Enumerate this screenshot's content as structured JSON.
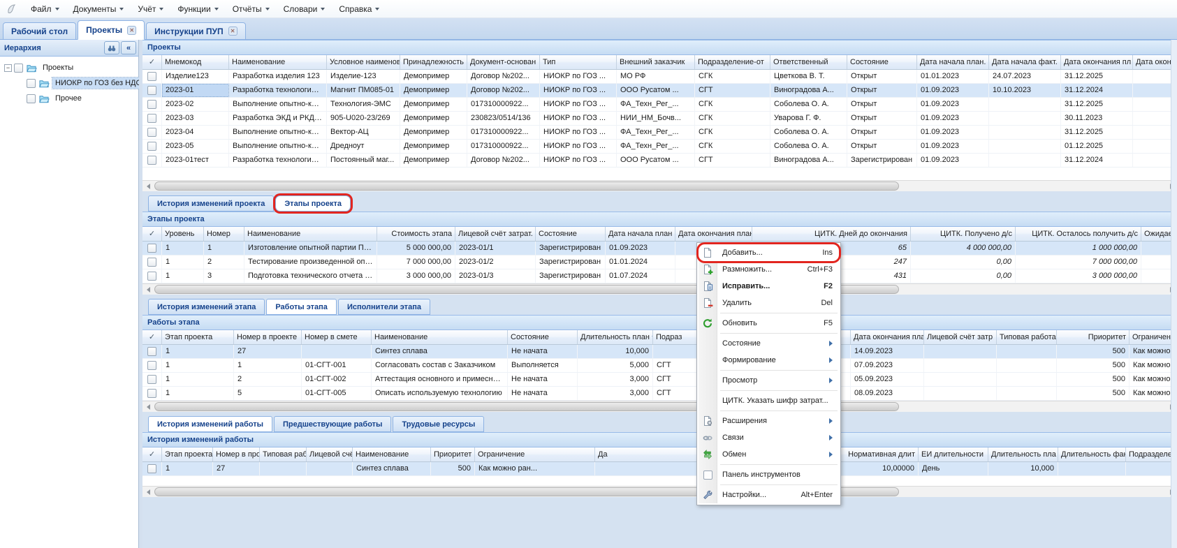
{
  "check_column_header": "✓",
  "menubar": {
    "items": [
      {
        "name": "file",
        "label": "Файл"
      },
      {
        "name": "documents",
        "label": "Документы"
      },
      {
        "name": "accounting",
        "label": "Учёт"
      },
      {
        "name": "functions",
        "label": "Функции"
      },
      {
        "name": "reports",
        "label": "Отчёты"
      },
      {
        "name": "dictionaries",
        "label": "Словари"
      },
      {
        "name": "help",
        "label": "Справка"
      }
    ]
  },
  "window_tabs": [
    {
      "name": "desktop",
      "label": "Рабочий стол",
      "closable": false,
      "active": false
    },
    {
      "name": "projects",
      "label": "Проекты",
      "closable": true,
      "active": true
    },
    {
      "name": "instructions",
      "label": "Инструкции ПУП",
      "closable": true,
      "active": false
    }
  ],
  "sidebar": {
    "title": "Иерархия",
    "nodes": [
      {
        "label": "Проекты",
        "level": 0,
        "expander": true,
        "selected": false
      },
      {
        "label": "НИОКР по ГОЗ без НДС",
        "level": 1,
        "expander": false,
        "selected": true
      },
      {
        "label": "Прочее",
        "level": 1,
        "expander": false,
        "selected": false
      }
    ]
  },
  "sections": [
    {
      "type": "grid",
      "id": "projects",
      "title": "Проекты",
      "selected_row": 1,
      "focus_cell": 0,
      "columns": [
        {
          "label": "Мнемокод"
        },
        {
          "label": "Наименование"
        },
        {
          "label": "Условное наименова"
        },
        {
          "label": "Принадлежность"
        },
        {
          "label": "Документ-основан"
        },
        {
          "label": "Тип"
        },
        {
          "label": "Внешний заказчик"
        },
        {
          "label": "Подразделение-от"
        },
        {
          "label": "Ответственный"
        },
        {
          "label": "Состояние"
        },
        {
          "label": "Дата начала план."
        },
        {
          "label": "Дата начала факт."
        },
        {
          "label": "Дата окончания пл"
        },
        {
          "label": "Дата окончания ф"
        }
      ],
      "rows": [
        [
          "Изделие123",
          "Разработка изделия 123",
          "Изделие-123",
          "Демопример",
          "Договор №202...",
          "НИОКР по ГОЗ ...",
          "МО РФ",
          "СГК",
          "Цветкова В. Т.",
          "Открыт",
          "01.01.2023",
          "24.07.2023",
          "31.12.2025",
          ""
        ],
        [
          "2023-01",
          "Разработка технологии и...",
          "Магнит ПМ085-01",
          "Демопример",
          "Договор №202...",
          "НИОКР по ГОЗ ...",
          "ООО Русатом ...",
          "СГТ",
          "Виноградова А...",
          "Открыт",
          "01.09.2023",
          "10.10.2023",
          "31.12.2024",
          ""
        ],
        [
          "2023-02",
          "Выполнение опытно-конс...",
          "Технология-ЭМС",
          "Демопример",
          "017310000922...",
          "НИОКР по ГОЗ ...",
          "ФА_Техн_Рег_...",
          "СГК",
          "Соболева О. А.",
          "Открыт",
          "01.09.2023",
          "",
          "31.12.2025",
          ""
        ],
        [
          "2023-03",
          "Разработка ЭКД и РКД н...",
          "905-U020-23/269",
          "Демопример",
          "230823/0514/136",
          "НИОКР по ГОЗ ...",
          "НИИ_НМ_Бочв...",
          "СГК",
          "Уварова Г. Ф.",
          "Открыт",
          "01.09.2023",
          "",
          "30.11.2023",
          ""
        ],
        [
          "2023-04",
          "Выполнение опытно-конс...",
          "Вектор-АЦ",
          "Демопример",
          "017310000922...",
          "НИОКР по ГОЗ ...",
          "ФА_Техн_Рег_...",
          "СГК",
          "Соболева О. А.",
          "Открыт",
          "01.09.2023",
          "",
          "31.12.2025",
          ""
        ],
        [
          "2023-05",
          "Выполнение опытно-конс...",
          "Дредноут",
          "Демопример",
          "017310000922...",
          "НИОКР по ГОЗ ...",
          "ФА_Техн_Рег_...",
          "СГК",
          "Соболева О. А.",
          "Открыт",
          "01.09.2023",
          "",
          "01.12.2025",
          ""
        ],
        [
          "2023-01тест",
          "Разработка технологии и...",
          "Постоянный маг...",
          "Демопример",
          "Договор №202...",
          "НИОКР по ГОЗ ...",
          "ООО Русатом ...",
          "СГТ",
          "Виноградова А...",
          "Зарегистрирован",
          "01.09.2023",
          "",
          "31.12.2024",
          ""
        ]
      ]
    },
    {
      "type": "tabs",
      "id": "project-detail",
      "tabs": [
        {
          "name": "project-history",
          "label": "История изменений проекта",
          "active": false
        },
        {
          "name": "project-stages",
          "label": "Этапы проекта",
          "active": true,
          "annotated": true
        }
      ]
    },
    {
      "type": "grid",
      "id": "stages",
      "title": "Этапы проекта",
      "selected_row": 0,
      "columns": [
        {
          "label": "Уровень"
        },
        {
          "label": "Номер"
        },
        {
          "label": "Наименование"
        },
        {
          "label": "Стоимость этапа",
          "align": "right"
        },
        {
          "label": "Лицевой счёт затрат."
        },
        {
          "label": "Состояние"
        },
        {
          "label": "Дата начала план"
        },
        {
          "label": "Дата окончания план"
        },
        {
          "label": "ЦИТК. Дней до окончания",
          "align": "right",
          "italic": true
        },
        {
          "label": "ЦИТК. Получено д/с",
          "align": "right",
          "italic": true
        },
        {
          "label": "ЦИТК. Осталось получить д/с",
          "align": "right",
          "italic": true
        },
        {
          "label": "Ожидаемые"
        }
      ],
      "rows": [
        [
          "1",
          "1",
          "Изготовление опытной партии ПМ0...",
          "5 000 000,00",
          "2023-01/1",
          "Зарегистрирован",
          "01.09.2023",
          "",
          "65",
          "4 000 000,00",
          "1 000 000,00",
          ""
        ],
        [
          "1",
          "2",
          "Тестирование произведенной опыт...",
          "7 000 000,00",
          "2023-01/2",
          "Зарегистрирован",
          "01.01.2024",
          "",
          "247",
          "0,00",
          "7 000 000,00",
          ""
        ],
        [
          "1",
          "3",
          "Подготовка технического отчета с ...",
          "3 000 000,00",
          "2023-01/3",
          "Зарегистрирован",
          "01.07.2024",
          "",
          "431",
          "0,00",
          "3 000 000,00",
          ""
        ]
      ]
    },
    {
      "type": "tabs",
      "id": "stage-detail",
      "tabs": [
        {
          "name": "stage-history",
          "label": "История изменений этапа",
          "active": false
        },
        {
          "name": "stage-works",
          "label": "Работы этапа",
          "active": true
        },
        {
          "name": "stage-executors",
          "label": "Исполнители этапа",
          "active": false
        }
      ]
    },
    {
      "type": "grid",
      "id": "works",
      "title": "Работы этапа",
      "selected_row": 0,
      "columns": [
        {
          "label": "Этап проекта"
        },
        {
          "label": "Номер в проекте"
        },
        {
          "label": "Номер в смете"
        },
        {
          "label": "Наименование"
        },
        {
          "label": "Состояние"
        },
        {
          "label": "Длительность план",
          "align": "right",
          "sort": true
        },
        {
          "label": "Подраз"
        },
        {
          "label": "Дата начала план."
        },
        {
          "label": "Дата окончания план"
        },
        {
          "label": "Лицевой счёт затр"
        },
        {
          "label": "Типовая работа"
        },
        {
          "label": "Приоритет",
          "align": "right"
        },
        {
          "label": "Ограничение"
        }
      ],
      "rows": [
        [
          "1",
          "27",
          "",
          "Синтез сплава",
          "Не начата",
          "10,000",
          "",
          "",
          "14.09.2023",
          "",
          "",
          "500",
          "Как можно ран..."
        ],
        [
          "1",
          "1",
          "01-СГТ-001",
          "Согласовать состав с Заказчиком",
          "Выполняется",
          "5,000",
          "СГТ",
          "",
          "07.09.2023",
          "",
          "",
          "500",
          "Как можно ран..."
        ],
        [
          "1",
          "2",
          "01-СГТ-002",
          "Аттестация основного и примесног...",
          "Не начата",
          "3,000",
          "СГТ",
          "",
          "05.09.2023",
          "",
          "",
          "500",
          "Как можно ран..."
        ],
        [
          "1",
          "5",
          "01-СГТ-005",
          "Описать используемую технологию",
          "Не начата",
          "3,000",
          "СГТ",
          "",
          "08.09.2023",
          "",
          "",
          "500",
          "Как можно ран..."
        ]
      ]
    },
    {
      "type": "tabs",
      "id": "work-detail",
      "tabs": [
        {
          "name": "work-history",
          "label": "История изменений работы",
          "active": true
        },
        {
          "name": "work-predecessors",
          "label": "Предшествующие работы",
          "active": false
        },
        {
          "name": "work-labor",
          "label": "Трудовые ресурсы",
          "active": false
        }
      ]
    },
    {
      "type": "grid",
      "id": "history",
      "title": "История изменений работы",
      "selected_row": 0,
      "columns": [
        {
          "label": "Этап проекта"
        },
        {
          "label": "Номер в проекте"
        },
        {
          "label": "Типовая работа"
        },
        {
          "label": "Лицевой счёт затр"
        },
        {
          "label": "Наименование"
        },
        {
          "label": "Приоритет",
          "align": "right"
        },
        {
          "label": "Ограничение"
        },
        {
          "label": "Да"
        },
        {
          "label": "Нормативная длит",
          "align": "right"
        },
        {
          "label": "ЕИ длительности"
        },
        {
          "label": "Длительность пла",
          "align": "right"
        },
        {
          "label": "Длительность фак"
        },
        {
          "label": "Подразделение-ис"
        }
      ],
      "rows": [
        [
          "1",
          "27",
          "",
          "",
          "Синтез сплава",
          "500",
          "Как можно ран...",
          "",
          "10,00000",
          "День",
          "10,000",
          "",
          ""
        ]
      ]
    }
  ],
  "context_menu": {
    "items": [
      {
        "type": "item",
        "name": "add",
        "icon": "add-page-icon",
        "label": "Добавить...",
        "shortcut": "Ins",
        "annotated": true
      },
      {
        "type": "item",
        "name": "duplicate",
        "icon": "duplicate-page-icon",
        "label": "Размножить...",
        "shortcut": "Ctrl+F3"
      },
      {
        "type": "item",
        "name": "edit",
        "icon": "edit-page-icon",
        "label": "Исправить...",
        "shortcut": "F2",
        "bold": true
      },
      {
        "type": "item",
        "name": "delete",
        "icon": "delete-page-icon",
        "label": "Удалить",
        "shortcut": "Del"
      },
      {
        "type": "separator"
      },
      {
        "type": "item",
        "name": "refresh",
        "icon": "refresh-icon",
        "label": "Обновить",
        "shortcut": "F5"
      },
      {
        "type": "separator"
      },
      {
        "type": "item",
        "name": "state",
        "label": "Состояние",
        "submenu": true
      },
      {
        "type": "item",
        "name": "formation",
        "label": "Формирование",
        "submenu": true
      },
      {
        "type": "separator"
      },
      {
        "type": "item",
        "name": "view",
        "label": "Просмотр",
        "submenu": true
      },
      {
        "type": "separator"
      },
      {
        "type": "item",
        "name": "citk-cost-code",
        "label": "ЦИТК. Указать шифр затрат..."
      },
      {
        "type": "separator"
      },
      {
        "type": "item",
        "name": "extensions",
        "icon": "extensions-icon",
        "label": "Расширения",
        "submenu": true
      },
      {
        "type": "item",
        "name": "links",
        "icon": "links-icon",
        "label": "Связи",
        "submenu": true
      },
      {
        "type": "item",
        "name": "exchange",
        "icon": "exchange-icon",
        "label": "Обмен",
        "submenu": true
      },
      {
        "type": "separator"
      },
      {
        "type": "item",
        "name": "toolbar-panel",
        "icon": "checkbox-icon",
        "label": "Панель инструментов"
      },
      {
        "type": "separator"
      },
      {
        "type": "item",
        "name": "settings",
        "icon": "wrench-icon",
        "label": "Настройки...",
        "shortcut": "Alt+Enter"
      }
    ]
  },
  "colors": {
    "accent": "#15428b",
    "annotation": "#e2251f",
    "selection": "#d6e6f8"
  }
}
